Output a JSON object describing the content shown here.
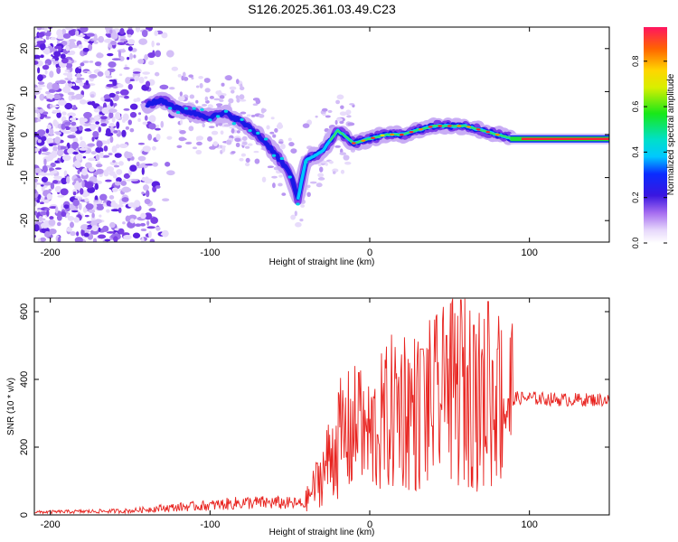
{
  "title": "S126.2025.361.03.49.C23",
  "chart_data": [
    {
      "type": "heatmap",
      "xlabel": "Height of straight line (km)",
      "ylabel": "Frequency (Hz)",
      "xlim": [
        -210,
        150
      ],
      "ylim": [
        -25,
        25
      ],
      "xticks": [
        -200,
        -100,
        0,
        100
      ],
      "yticks": [
        -20,
        -10,
        0,
        10,
        20
      ],
      "colorbar": {
        "label": "Normalized spectral amplitude",
        "range": [
          0,
          0.95
        ],
        "ticks": [
          0.0,
          0.2,
          0.4,
          0.6,
          0.8
        ]
      },
      "ridge": {
        "description_points": [
          {
            "x": -140,
            "y": 7
          },
          {
            "x": -130,
            "y": 8
          },
          {
            "x": -120,
            "y": 6
          },
          {
            "x": -110,
            "y": 5
          },
          {
            "x": -100,
            "y": 4
          },
          {
            "x": -90,
            "y": 5
          },
          {
            "x": -80,
            "y": 3
          },
          {
            "x": -70,
            "y": 0
          },
          {
            "x": -60,
            "y": -4
          },
          {
            "x": -50,
            "y": -9
          },
          {
            "x": -45,
            "y": -15
          },
          {
            "x": -40,
            "y": -6
          },
          {
            "x": -30,
            "y": -4
          },
          {
            "x": -20,
            "y": 1
          },
          {
            "x": -10,
            "y": -2
          },
          {
            "x": 0,
            "y": -1
          },
          {
            "x": 10,
            "y": 0
          },
          {
            "x": 20,
            "y": 0
          },
          {
            "x": 30,
            "y": 1
          },
          {
            "x": 40,
            "y": 2
          },
          {
            "x": 50,
            "y": 2
          },
          {
            "x": 60,
            "y": 2
          },
          {
            "x": 70,
            "y": 1
          },
          {
            "x": 80,
            "y": 0
          },
          {
            "x": 90,
            "y": -1
          },
          {
            "x": 150,
            "y": -1
          }
        ]
      }
    },
    {
      "type": "line",
      "xlabel": "Height of straight line (km)",
      "ylabel": "SNR (10 * v/v)",
      "xlim": [
        -210,
        150
      ],
      "ylim": [
        0,
        640
      ],
      "xticks": [
        -200,
        -100,
        0,
        100
      ],
      "yticks": [
        0,
        200,
        400,
        600
      ],
      "color": "#e8231f",
      "series_envelope": [
        {
          "x": -210,
          "y": 10
        },
        {
          "x": -150,
          "y": 15
        },
        {
          "x": -130,
          "y": 25
        },
        {
          "x": -100,
          "y": 35
        },
        {
          "x": -80,
          "y": 45
        },
        {
          "x": -60,
          "y": 45
        },
        {
          "x": -40,
          "y": 40
        },
        {
          "x": -30,
          "y": 120
        },
        {
          "x": -20,
          "y": 220
        },
        {
          "x": -10,
          "y": 250
        },
        {
          "x": 0,
          "y": 230
        },
        {
          "x": 10,
          "y": 280
        },
        {
          "x": 20,
          "y": 330
        },
        {
          "x": 30,
          "y": 300
        },
        {
          "x": 40,
          "y": 330
        },
        {
          "x": 50,
          "y": 350
        },
        {
          "x": 60,
          "y": 380
        },
        {
          "x": 70,
          "y": 330
        },
        {
          "x": 80,
          "y": 350
        },
        {
          "x": 90,
          "y": 345
        },
        {
          "x": 100,
          "y": 345
        },
        {
          "x": 120,
          "y": 340
        },
        {
          "x": 150,
          "y": 340
        }
      ],
      "peaks": [
        {
          "x": -7,
          "y": 420
        },
        {
          "x": 33,
          "y": 490
        },
        {
          "x": 48,
          "y": 530
        },
        {
          "x": 57,
          "y": 635
        },
        {
          "x": 65,
          "y": 560
        },
        {
          "x": 74,
          "y": 630
        },
        {
          "x": 80,
          "y": 490
        }
      ]
    }
  ]
}
